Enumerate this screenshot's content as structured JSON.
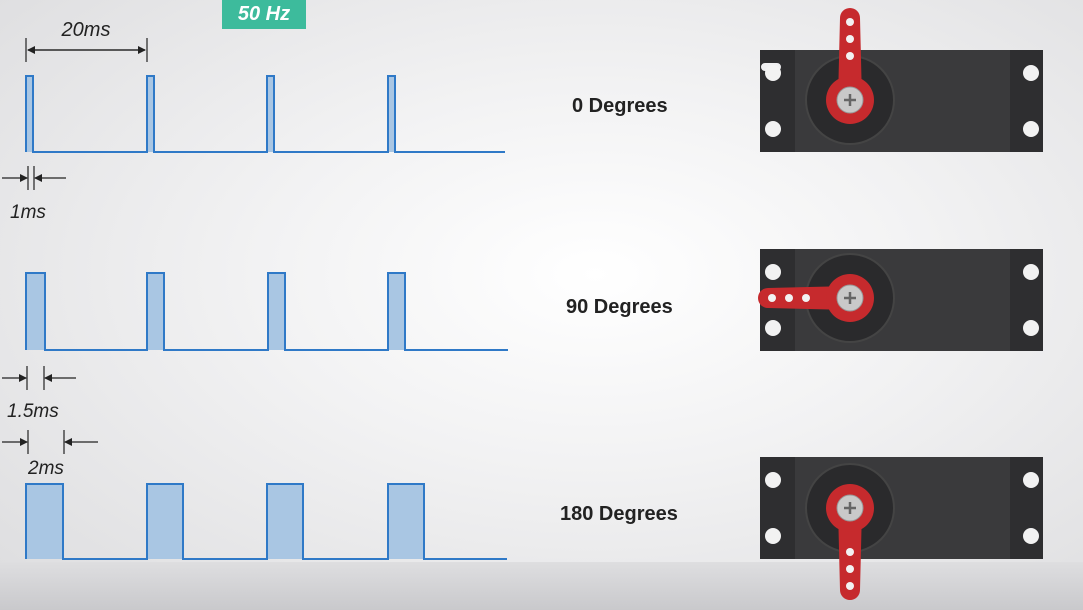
{
  "frequency_badge": "50 Hz",
  "period_label": "20ms",
  "rows": [
    {
      "pulse_label": "1ms",
      "position_label": "0 Degrees",
      "pulse_width_ms": 1,
      "horn_angle_deg": 0
    },
    {
      "pulse_label": "1.5ms",
      "position_label": "90 Degrees",
      "pulse_width_ms": 1.5,
      "horn_angle_deg": 90
    },
    {
      "pulse_label": "2ms",
      "position_label": "180 Degrees",
      "pulse_width_ms": 2,
      "horn_angle_deg": 180
    }
  ],
  "colors": {
    "signal_line": "#2f79c7",
    "pulse_fill": "#a9c6e3",
    "badge": "#3dbb9c",
    "servo_body": "#2e2e30",
    "servo_horn": "#c62a2d"
  }
}
